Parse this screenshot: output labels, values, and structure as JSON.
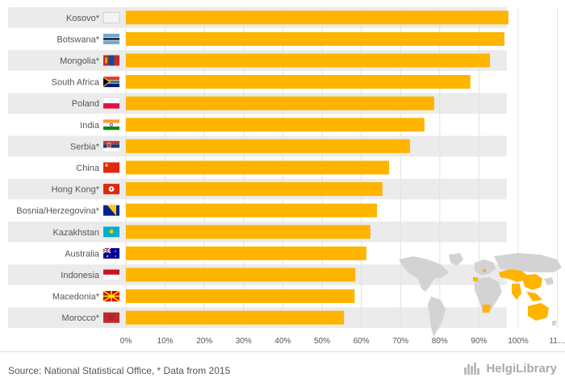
{
  "chart_data": {
    "type": "bar",
    "orientation": "horizontal",
    "categories": [
      "Kosovo*",
      "Botswana*",
      "Mongolia*",
      "South Africa",
      "Poland",
      "India",
      "Serbia*",
      "China",
      "Hong Kong*",
      "Bosnia/Herzegovina*",
      "Kazakhstan",
      "Australia",
      "Indonesia",
      "Macedonia*",
      "Morocco*"
    ],
    "values": [
      97.5,
      96.5,
      92.8,
      87.8,
      78.6,
      76.1,
      72.4,
      67.1,
      65.4,
      64.0,
      62.3,
      61.3,
      58.5,
      58.3,
      55.6
    ],
    "xlim": [
      0,
      110
    ],
    "tick_labels": [
      "0%",
      "10%",
      "20%",
      "30%",
      "40%",
      "50%",
      "60%",
      "70%",
      "80%",
      "90%",
      "100%",
      "11…"
    ],
    "grid": true,
    "colors": {
      "bar": "#FFB400",
      "band": "#EBEBEB",
      "map_land": "#D3D3D3",
      "map_highlight": "#FFB400"
    }
  },
  "flags": [
    "kosovo-flag",
    "botswana-flag",
    "mongolia-flag",
    "south-africa-flag",
    "poland-flag",
    "india-flag",
    "serbia-flag",
    "china-flag",
    "hong-kong-flag",
    "bosnia-flag",
    "kazakhstan-flag",
    "australia-flag",
    "indonesia-flag",
    "macedonia-flag",
    "morocco-flag"
  ],
  "footer": {
    "source": "Source: National Statistical Office, * Data from 2015",
    "brand": "HelgiLibrary"
  }
}
